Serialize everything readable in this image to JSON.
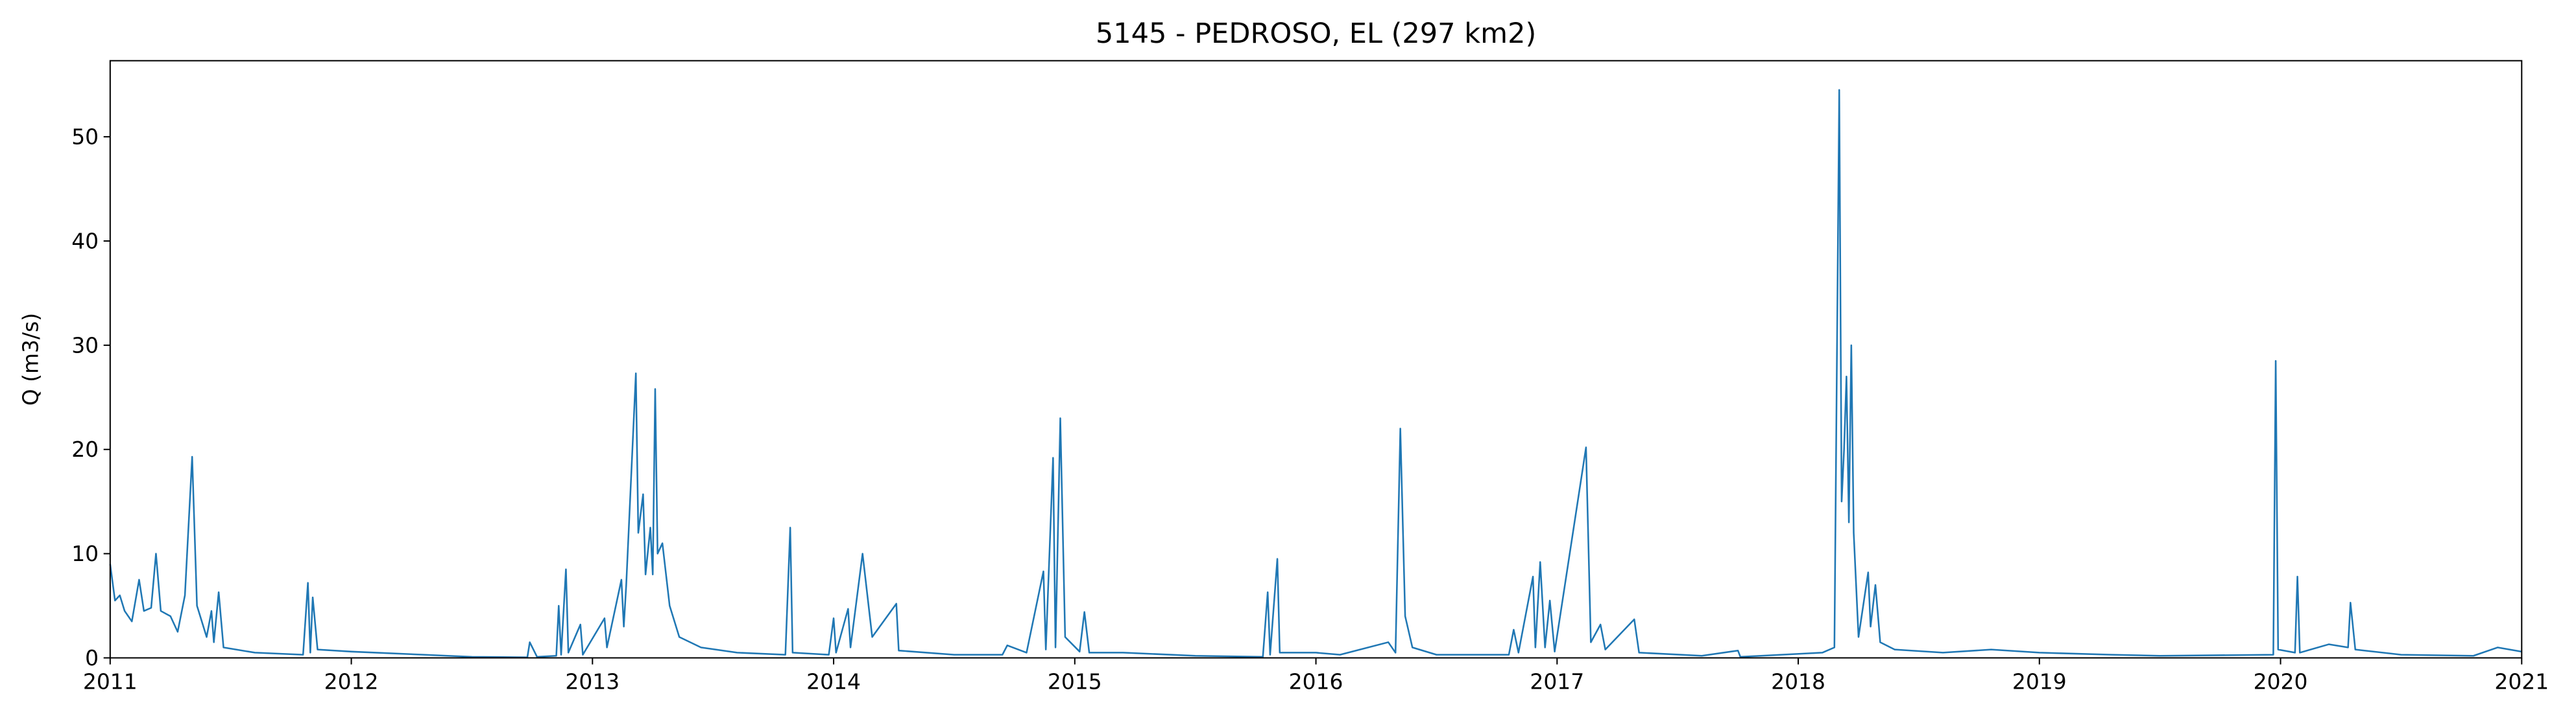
{
  "chart_data": {
    "type": "line",
    "title": "5145 - PEDROSO, EL (297 km2)",
    "y_label": "Q (m3/s)",
    "xlim": [
      2011,
      2021
    ],
    "xticks": [
      2011,
      2012,
      2013,
      2014,
      2015,
      2016,
      2017,
      2018,
      2019,
      2020,
      2021
    ],
    "ylim": [
      0,
      57.3
    ],
    "yticks": [
      0,
      10,
      20,
      30,
      40,
      50
    ],
    "grid": false,
    "x": [
      2011.0,
      2011.02,
      2011.04,
      2011.06,
      2011.09,
      2011.12,
      2011.14,
      2011.17,
      2011.19,
      2011.21,
      2011.25,
      2011.28,
      2011.31,
      2011.34,
      2011.36,
      2011.4,
      2011.42,
      2011.43,
      2011.45,
      2011.47,
      2011.6,
      2011.8,
      2011.82,
      2011.83,
      2011.84,
      2011.86,
      2012.0,
      2012.3,
      2012.5,
      2012.73,
      2012.74,
      2012.77,
      2012.85,
      2012.86,
      2012.87,
      2012.89,
      2012.9,
      2012.95,
      2012.96,
      2013.05,
      2013.06,
      2013.12,
      2013.13,
      2013.14,
      2013.18,
      2013.19,
      2013.21,
      2013.22,
      2013.24,
      2013.25,
      2013.26,
      2013.27,
      2013.29,
      2013.32,
      2013.36,
      2013.45,
      2013.6,
      2013.8,
      2013.82,
      2013.83,
      2013.98,
      2014.0,
      2014.01,
      2014.06,
      2014.07,
      2014.12,
      2014.14,
      2014.16,
      2014.26,
      2014.27,
      2014.5,
      2014.7,
      2014.72,
      2014.8,
      2014.87,
      2014.88,
      2014.91,
      2014.92,
      2014.94,
      2014.96,
      2015.02,
      2015.04,
      2015.06,
      2015.2,
      2015.5,
      2015.78,
      2015.8,
      2015.81,
      2015.84,
      2015.85,
      2016.0,
      2016.1,
      2016.3,
      2016.33,
      2016.35,
      2016.37,
      2016.4,
      2016.5,
      2016.8,
      2016.82,
      2016.84,
      2016.9,
      2016.91,
      2016.93,
      2016.95,
      2016.97,
      2016.99,
      2017.12,
      2017.14,
      2017.18,
      2017.2,
      2017.32,
      2017.34,
      2017.6,
      2017.75,
      2017.76,
      2018.1,
      2018.15,
      2018.17,
      2018.18,
      2018.19,
      2018.2,
      2018.21,
      2018.22,
      2018.23,
      2018.25,
      2018.29,
      2018.3,
      2018.32,
      2018.34,
      2018.4,
      2018.6,
      2018.8,
      2019.0,
      2019.3,
      2019.5,
      2019.97,
      2019.98,
      2019.99,
      2020.06,
      2020.07,
      2020.08,
      2020.2,
      2020.28,
      2020.29,
      2020.31,
      2020.5,
      2020.8,
      2020.9,
      2021.0
    ],
    "series": [
      {
        "color": "#1f77b4",
        "values": [
          9,
          5.5,
          6,
          4.5,
          3.5,
          7.5,
          4.5,
          4.8,
          10,
          4.5,
          4,
          2.5,
          6,
          19.3,
          5,
          2,
          4.5,
          1.5,
          6.3,
          1,
          0.5,
          0.3,
          7.2,
          0.5,
          5.8,
          0.8,
          0.6,
          0.3,
          0.1,
          0.05,
          1.5,
          0.1,
          0.2,
          5,
          0.3,
          8.5,
          0.5,
          3.2,
          0.3,
          3.8,
          1,
          7.5,
          3,
          7,
          27.3,
          12,
          15.7,
          8,
          12.5,
          8,
          25.8,
          10,
          11,
          5,
          2,
          1,
          0.5,
          0.3,
          12.5,
          0.5,
          0.3,
          3.8,
          0.5,
          4.7,
          1,
          10,
          6,
          2,
          5.2,
          0.7,
          0.3,
          0.3,
          1.2,
          0.5,
          8.3,
          0.8,
          19.2,
          1,
          23,
          2,
          0.6,
          4.4,
          0.5,
          0.5,
          0.2,
          0.1,
          6.3,
          0.3,
          9.5,
          0.5,
          0.5,
          0.3,
          1.5,
          0.5,
          22,
          4,
          1,
          0.3,
          0.3,
          2.7,
          0.5,
          7.8,
          1,
          9.2,
          1,
          5.5,
          0.6,
          20.2,
          1.5,
          3.2,
          0.8,
          3.7,
          0.5,
          0.2,
          0.7,
          0.1,
          0.5,
          1,
          54.5,
          15,
          20,
          27,
          13,
          30,
          12,
          2,
          8.2,
          3,
          7,
          1.5,
          0.8,
          0.5,
          0.8,
          0.5,
          0.3,
          0.2,
          0.3,
          28.5,
          0.8,
          0.5,
          7.8,
          0.5,
          1.3,
          1,
          5.3,
          0.8,
          0.3,
          0.2,
          1,
          0.6
        ]
      }
    ]
  }
}
